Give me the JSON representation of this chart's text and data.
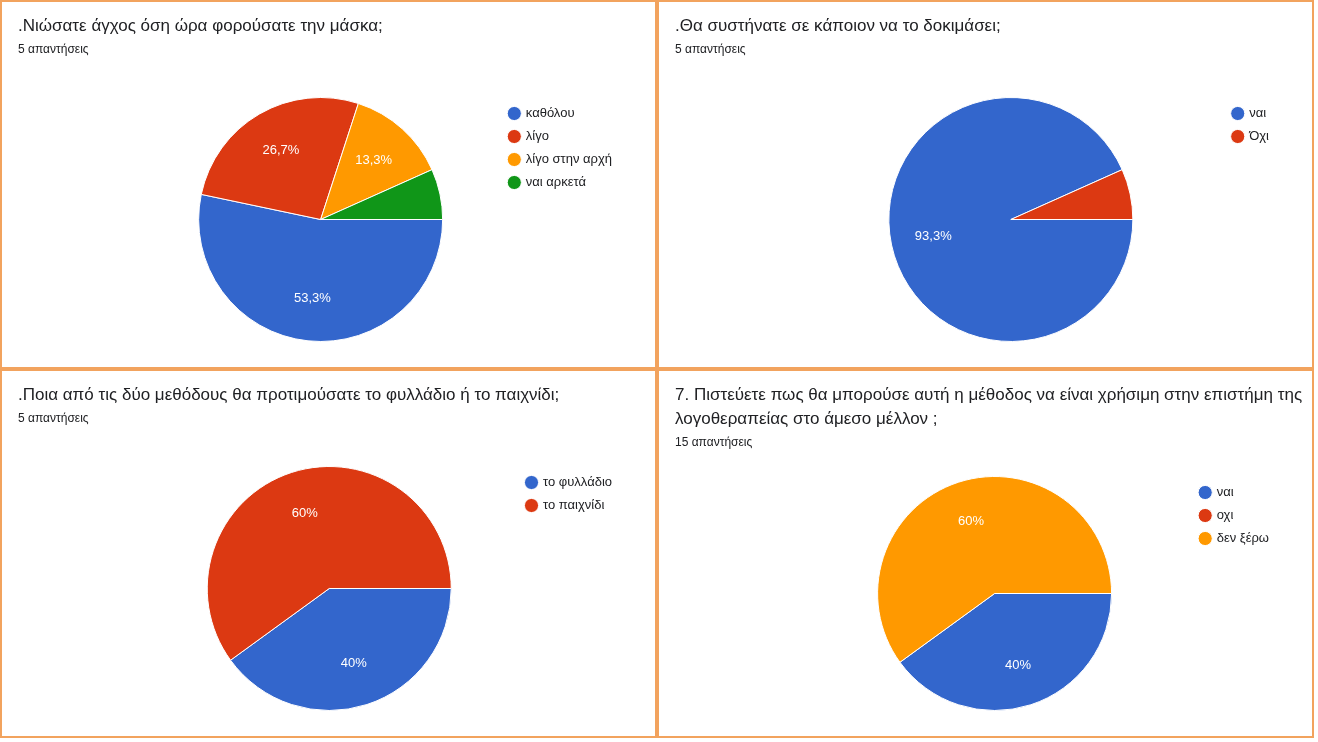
{
  "chart_data": [
    {
      "type": "pie",
      "title": ".Νιώσατε άγχος όση ώρα φορούσατε την μάσκα;",
      "subtitle": "5 απαντήσεις",
      "categories": [
        "καθόλου",
        "λίγο",
        "λίγο στην αρχή",
        "ναι αρκετά"
      ],
      "values": [
        53.3,
        26.7,
        13.3,
        6.7
      ],
      "value_labels": [
        "53,3%",
        "26,7%",
        "13,3%",
        null
      ],
      "colors": [
        "#3366cc",
        "#dc3912",
        "#ff9900",
        "#109618"
      ],
      "legend": "right"
    },
    {
      "type": "pie",
      "title": ".Θα συστήνατε σε κάποιον να το δοκιμάσει;",
      "subtitle": "5 απαντήσεις",
      "categories": [
        "ναι",
        "Όχι"
      ],
      "values": [
        93.3,
        6.7
      ],
      "value_labels": [
        "93,3%",
        null
      ],
      "colors": [
        "#3366cc",
        "#dc3912"
      ],
      "legend": "right"
    },
    {
      "type": "pie",
      "title": ".Ποια από τις δύο μεθόδους θα προτιμούσατε το φυλλάδιο ή το παιχνίδι;",
      "subtitle": "5 απαντήσεις",
      "categories": [
        "το φυλλάδιο",
        "το παιχνίδι"
      ],
      "values": [
        40,
        60
      ],
      "value_labels": [
        "40%",
        "60%"
      ],
      "colors": [
        "#3366cc",
        "#dc3912"
      ],
      "legend": "right"
    },
    {
      "type": "pie",
      "title": "7. Πιστεύετε πως θα μπορούσε αυτή η μέθοδος να είναι χρήσιμη στην επιστήμη της λογοθεραπείας στο άμεσο μέλλον ;",
      "subtitle": "15 απαντήσεις",
      "categories": [
        "ναι",
        "οχι",
        "δεν ξέρω"
      ],
      "values": [
        40,
        0,
        60
      ],
      "value_labels": [
        "40%",
        null,
        "60%"
      ],
      "colors": [
        "#3366cc",
        "#dc3912",
        "#ff9900"
      ],
      "legend": "right"
    }
  ]
}
